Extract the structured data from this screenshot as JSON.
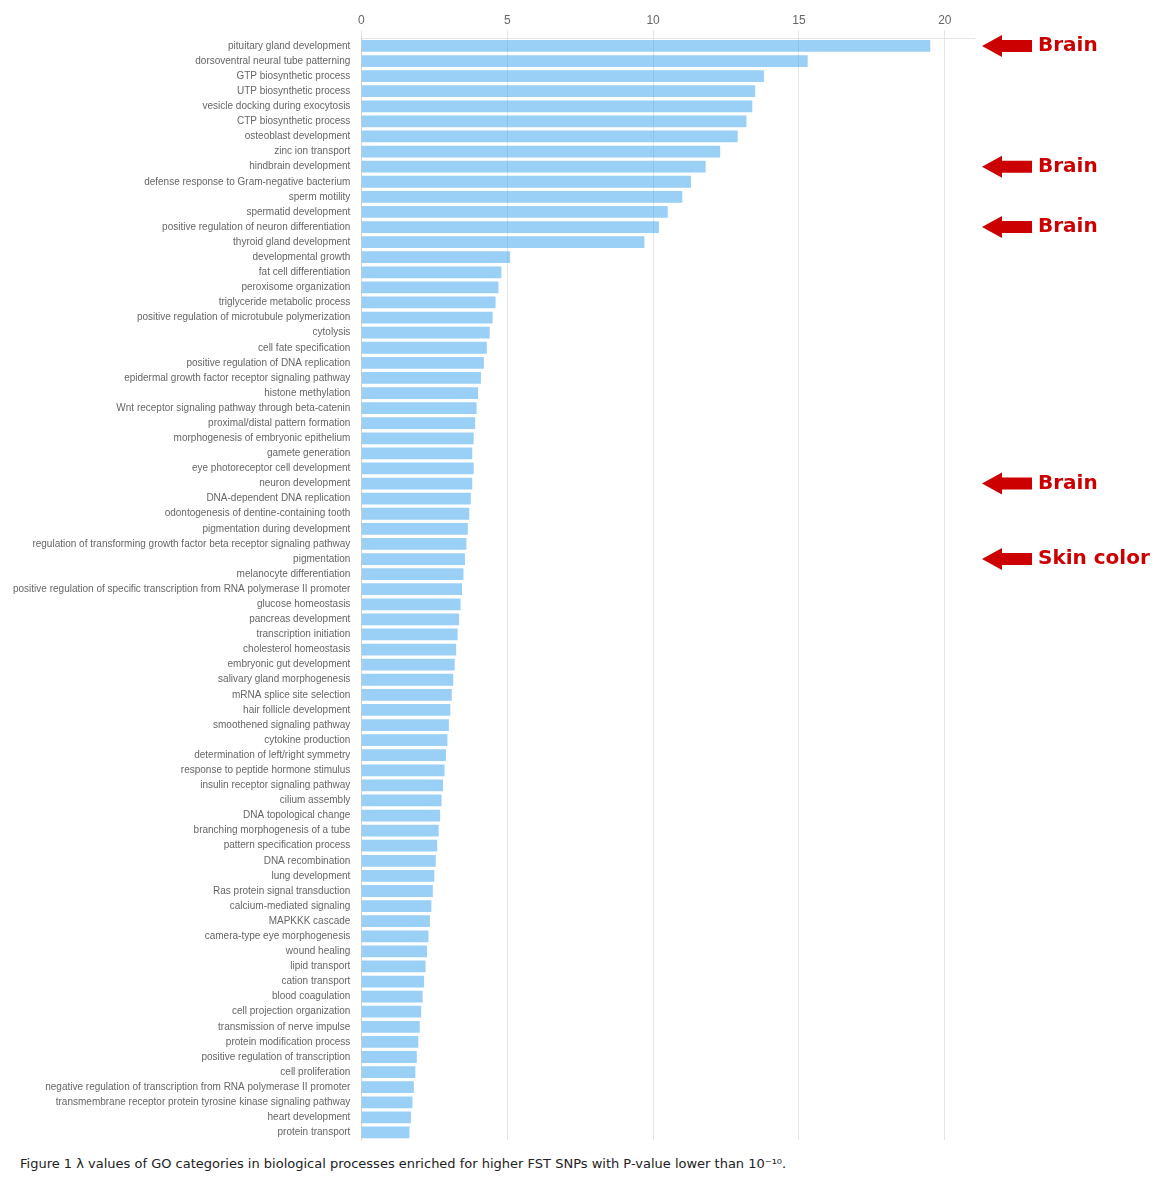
{
  "chart_data": {
    "type": "bar",
    "orientation": "horizontal",
    "categories": [
      "pituitary gland development",
      "dorsoventral neural tube patterning",
      "GTP biosynthetic process",
      "UTP biosynthetic process",
      "vesicle docking during exocytosis",
      "CTP biosynthetic process",
      "osteoblast development",
      "zinc ion transport",
      "hindbrain development",
      "defense response to Gram-negative bacterium",
      "sperm motility",
      "spermatid development",
      "positive regulation of neuron differentiation",
      "thyroid gland development",
      "developmental growth",
      "fat cell differentiation",
      "peroxisome organization",
      "triglyceride metabolic process",
      "positive regulation of microtubule polymerization",
      "cytolysis",
      "cell fate specification",
      "positive regulation of DNA replication",
      "epidermal growth factor receptor signaling pathway",
      "histone methylation",
      "Wnt receptor signaling pathway through beta-catenin",
      "proximal/distal pattern formation",
      "morphogenesis of embryonic epithelium",
      "gamete generation",
      "eye photoreceptor cell development",
      "neuron development",
      "DNA-dependent DNA replication",
      "odontogenesis of dentine-containing tooth",
      "pigmentation during development",
      "regulation of transforming growth factor beta receptor signaling pathway",
      "pigmentation",
      "melanocyte differentiation",
      "positive regulation of specific transcription from RNA polymerase II promoter",
      "glucose homeostasis",
      "pancreas development",
      "transcription initiation",
      "cholesterol homeostasis",
      "embryonic gut development",
      "salivary gland morphogenesis",
      "mRNA splice site selection",
      "hair follicle development",
      "smoothened signaling pathway",
      "cytokine production",
      "determination of left/right symmetry",
      "response to peptide hormone stimulus",
      "insulin receptor signaling pathway",
      "cilium assembly",
      "DNA topological change",
      "branching morphogenesis of a tube",
      "pattern specification process",
      "DNA recombination",
      "lung development",
      "Ras protein signal transduction",
      "calcium-mediated signaling",
      "MAPKKK cascade",
      "camera-type eye morphogenesis",
      "wound healing",
      "lipid transport",
      "cation transport",
      "blood coagulation",
      "cell projection organization",
      "transmission of nerve impulse",
      "protein modification process",
      "positive regulation of transcription",
      "cell proliferation",
      "negative regulation of transcription from RNA polymerase II promoter",
      "transmembrane receptor protein tyrosine kinase signaling pathway",
      "heart development",
      "protein transport"
    ],
    "values": [
      19.5,
      15.3,
      13.8,
      13.5,
      13.4,
      13.2,
      12.9,
      12.3,
      11.8,
      11.3,
      11.0,
      10.5,
      10.2,
      9.7,
      5.1,
      4.8,
      4.7,
      4.6,
      4.5,
      4.4,
      4.3,
      4.2,
      4.1,
      4.0,
      3.95,
      3.9,
      3.85,
      3.8,
      3.85,
      3.8,
      3.75,
      3.7,
      3.65,
      3.6,
      3.55,
      3.5,
      3.45,
      3.4,
      3.35,
      3.3,
      3.25,
      3.2,
      3.15,
      3.1,
      3.05,
      3.0,
      2.95,
      2.9,
      2.85,
      2.8,
      2.75,
      2.7,
      2.65,
      2.6,
      2.55,
      2.5,
      2.45,
      2.4,
      2.35,
      2.3,
      2.25,
      2.2,
      2.15,
      2.1,
      2.05,
      2.0,
      1.95,
      1.9,
      1.85,
      1.8,
      1.75,
      1.7,
      1.65
    ],
    "xlim": [
      0,
      21
    ],
    "xticks": [
      0,
      5,
      10,
      15,
      20
    ],
    "grid": true,
    "annotations": [
      {
        "text": "Brain",
        "category": "pituitary gland development",
        "color": "#CC0000"
      },
      {
        "text": "Brain",
        "category": "hindbrain development",
        "color": "#CC0000"
      },
      {
        "text": "Brain",
        "category": "positive regulation of neuron differentiation",
        "color": "#CC0000"
      },
      {
        "text": "Brain",
        "category": "neuron development",
        "color": "#CC0000"
      },
      {
        "text": "Skin color",
        "category": "pigmentation",
        "color": "#CC0000"
      },
      {
        "text": "Figure 1 λ values of GO categories in biological processes enriched for higher FST SNPs with P-value lower than 10⁻¹⁰."
      }
    ]
  }
}
